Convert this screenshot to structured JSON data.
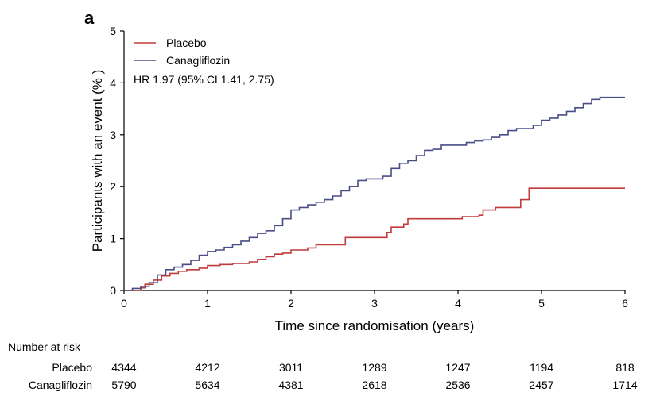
{
  "chart_data": {
    "type": "line",
    "panel_label": "a",
    "xlabel": "Time since randomisation (years)",
    "ylabel": "Participants with an event (% )",
    "xlim": [
      0,
      6
    ],
    "ylim": [
      0,
      5
    ],
    "x_ticks": [
      "0",
      "1",
      "2",
      "3",
      "4",
      "5",
      "6"
    ],
    "y_ticks": [
      "0",
      "1",
      "2",
      "3",
      "4",
      "5"
    ],
    "grid": false,
    "legend_position": "top-left",
    "annotation": "HR 1.97 (95% CI 1.41, 2.75)",
    "series": [
      {
        "name": "Placebo",
        "color": "#c23b3b",
        "points": [
          [
            0,
            0
          ],
          [
            0.2,
            0.05
          ],
          [
            0.25,
            0.12
          ],
          [
            0.35,
            0.2
          ],
          [
            0.45,
            0.28
          ],
          [
            0.55,
            0.33
          ],
          [
            0.65,
            0.37
          ],
          [
            0.75,
            0.4
          ],
          [
            0.9,
            0.43
          ],
          [
            1.0,
            0.48
          ],
          [
            1.15,
            0.5
          ],
          [
            1.3,
            0.52
          ],
          [
            1.5,
            0.55
          ],
          [
            1.6,
            0.6
          ],
          [
            1.7,
            0.65
          ],
          [
            1.8,
            0.7
          ],
          [
            1.9,
            0.72
          ],
          [
            2.0,
            0.78
          ],
          [
            2.2,
            0.82
          ],
          [
            2.3,
            0.88
          ],
          [
            2.6,
            0.88
          ],
          [
            2.65,
            1.02
          ],
          [
            3.1,
            1.02
          ],
          [
            3.15,
            1.12
          ],
          [
            3.2,
            1.22
          ],
          [
            3.35,
            1.28
          ],
          [
            3.4,
            1.38
          ],
          [
            4.0,
            1.38
          ],
          [
            4.05,
            1.42
          ],
          [
            4.25,
            1.45
          ],
          [
            4.3,
            1.55
          ],
          [
            4.45,
            1.6
          ],
          [
            4.7,
            1.6
          ],
          [
            4.75,
            1.75
          ],
          [
            4.85,
            1.75
          ],
          [
            4.85,
            1.97
          ],
          [
            6.0,
            1.97
          ]
        ]
      },
      {
        "name": "Canagliflozin",
        "color": "#4a4e86",
        "points": [
          [
            0,
            0
          ],
          [
            0.1,
            0.04
          ],
          [
            0.2,
            0.08
          ],
          [
            0.3,
            0.15
          ],
          [
            0.4,
            0.3
          ],
          [
            0.5,
            0.4
          ],
          [
            0.6,
            0.45
          ],
          [
            0.7,
            0.5
          ],
          [
            0.8,
            0.58
          ],
          [
            0.9,
            0.68
          ],
          [
            1.0,
            0.75
          ],
          [
            1.1,
            0.78
          ],
          [
            1.2,
            0.83
          ],
          [
            1.3,
            0.88
          ],
          [
            1.4,
            0.95
          ],
          [
            1.5,
            1.02
          ],
          [
            1.6,
            1.1
          ],
          [
            1.7,
            1.15
          ],
          [
            1.8,
            1.25
          ],
          [
            1.9,
            1.38
          ],
          [
            2.0,
            1.55
          ],
          [
            2.1,
            1.6
          ],
          [
            2.2,
            1.65
          ],
          [
            2.3,
            1.7
          ],
          [
            2.4,
            1.75
          ],
          [
            2.5,
            1.82
          ],
          [
            2.6,
            1.92
          ],
          [
            2.7,
            2.0
          ],
          [
            2.8,
            2.12
          ],
          [
            2.9,
            2.15
          ],
          [
            3.0,
            2.15
          ],
          [
            3.1,
            2.2
          ],
          [
            3.2,
            2.35
          ],
          [
            3.3,
            2.45
          ],
          [
            3.4,
            2.5
          ],
          [
            3.5,
            2.6
          ],
          [
            3.6,
            2.7
          ],
          [
            3.7,
            2.72
          ],
          [
            3.8,
            2.8
          ],
          [
            3.9,
            2.8
          ],
          [
            4.0,
            2.8
          ],
          [
            4.1,
            2.85
          ],
          [
            4.2,
            2.88
          ],
          [
            4.3,
            2.9
          ],
          [
            4.4,
            2.95
          ],
          [
            4.5,
            3.0
          ],
          [
            4.6,
            3.08
          ],
          [
            4.7,
            3.12
          ],
          [
            4.8,
            3.12
          ],
          [
            4.9,
            3.18
          ],
          [
            5.0,
            3.28
          ],
          [
            5.1,
            3.32
          ],
          [
            5.2,
            3.38
          ],
          [
            5.3,
            3.45
          ],
          [
            5.4,
            3.52
          ],
          [
            5.5,
            3.6
          ],
          [
            5.6,
            3.68
          ],
          [
            5.7,
            3.72
          ],
          [
            6.0,
            3.72
          ]
        ]
      }
    ],
    "risk_table": {
      "title": "Number at risk",
      "timepoints": [
        0,
        1,
        2,
        3,
        4,
        5,
        6
      ],
      "rows": [
        {
          "label": "Placebo",
          "values": [
            "4344",
            "4212",
            "3011",
            "1289",
            "1247",
            "1194",
            "818"
          ]
        },
        {
          "label": "Canagliflozin",
          "values": [
            "5790",
            "5634",
            "4381",
            "2618",
            "2536",
            "2457",
            "1714"
          ]
        }
      ]
    }
  }
}
